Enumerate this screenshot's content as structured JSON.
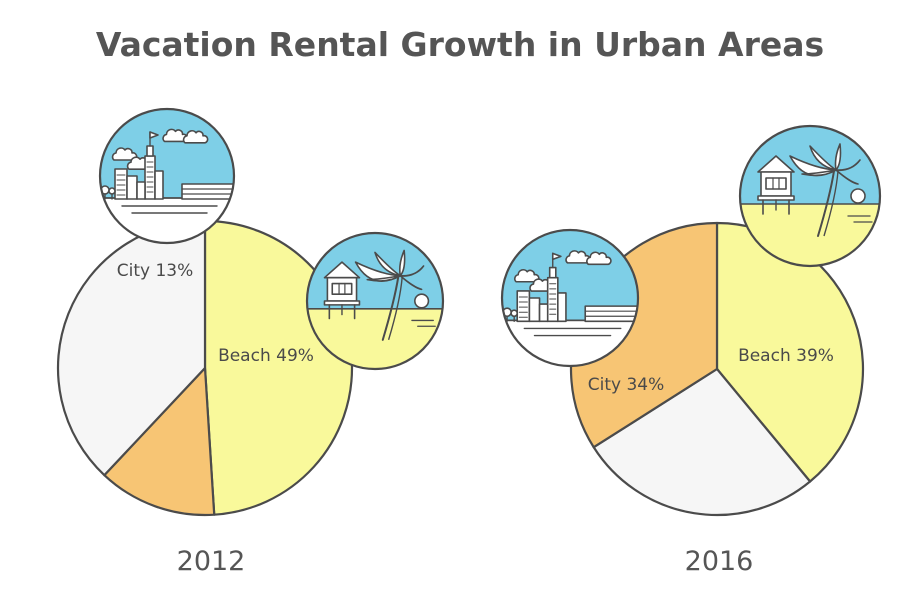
{
  "colors": {
    "stroke": "#4b4b4b",
    "beach": "#f9f99b",
    "city": "#f7c574",
    "other": "#f6f6f6",
    "sky": "#7ecfe7",
    "sand": "#f9f99b",
    "white": "#ffffff",
    "text": "#555555"
  },
  "chart_data": [
    {
      "type": "pie",
      "title": "Vacation Rental Growth in Urban Areas",
      "year": "2012",
      "slices": [
        {
          "name": "Beach",
          "value": 49,
          "label": "Beach 49%"
        },
        {
          "name": "City",
          "value": 13,
          "label": "City 13%"
        },
        {
          "name": "",
          "value": 38,
          "label": ""
        }
      ]
    },
    {
      "type": "pie",
      "title": "Vacation Rental Growth in Urban Areas",
      "year": "2016",
      "slices": [
        {
          "name": "Beach",
          "value": 39,
          "label": "Beach 39%"
        },
        {
          "name": "",
          "value": 27,
          "label": ""
        },
        {
          "name": "City",
          "value": 34,
          "label": "City 34%"
        }
      ]
    }
  ],
  "icons": [
    "city-icon",
    "beach-icon"
  ]
}
